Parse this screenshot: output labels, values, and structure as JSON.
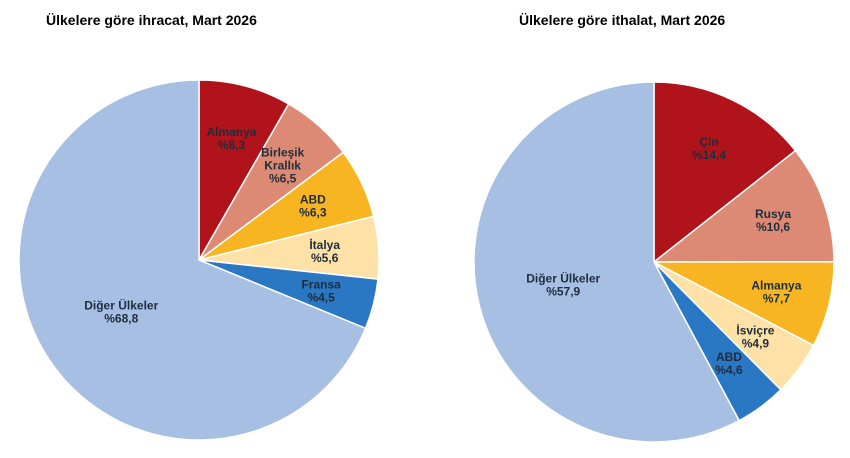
{
  "chart_data": [
    {
      "type": "pie",
      "title": "Ülkelere göre ihracat, Mart 2026",
      "slices": [
        {
          "label": [
            "Almanya"
          ],
          "value": 8.3,
          "value_text": "%8,3",
          "color": "#b0141a",
          "key": "almanya"
        },
        {
          "label": [
            "Birleşik",
            "Krallık"
          ],
          "value": 6.5,
          "value_text": "%6,5",
          "color": "#dc8a74",
          "key": "birlesik-krallik"
        },
        {
          "label": [
            "ABD"
          ],
          "value": 6.3,
          "value_text": "%6,3",
          "color": "#f7b521",
          "key": "abd"
        },
        {
          "label": [
            "İtalya"
          ],
          "value": 5.6,
          "value_text": "%5,6",
          "color": "#fde1a6",
          "key": "italya"
        },
        {
          "label": [
            "Fransa"
          ],
          "value": 4.5,
          "value_text": "%4,5",
          "color": "#2a78c4",
          "key": "fransa"
        },
        {
          "label": [
            "Diğer Ülkeler"
          ],
          "value": 68.8,
          "value_text": "%68,8",
          "color": "#a6bfe3",
          "key": "diger-ulkeler"
        }
      ]
    },
    {
      "type": "pie",
      "title": "Ülkelere göre ithalat, Mart 2026",
      "slices": [
        {
          "label": [
            "Çin"
          ],
          "value": 14.4,
          "value_text": "%14,4",
          "color": "#b0141a",
          "key": "cin"
        },
        {
          "label": [
            "Rusya"
          ],
          "value": 10.6,
          "value_text": "%10,6",
          "color": "#dc8a74",
          "key": "rusya"
        },
        {
          "label": [
            "Almanya"
          ],
          "value": 7.7,
          "value_text": "%7,7",
          "color": "#f7b521",
          "key": "almanya"
        },
        {
          "label": [
            "İsviçre"
          ],
          "value": 4.9,
          "value_text": "%4,9",
          "color": "#fde1a6",
          "key": "isvicre"
        },
        {
          "label": [
            "ABD"
          ],
          "value": 4.6,
          "value_text": "%4,6",
          "color": "#2a78c4",
          "key": "abd"
        },
        {
          "label": [
            "Diğer Ülkeler"
          ],
          "value": 57.9,
          "value_text": "%57,9",
          "color": "#a6bfe3",
          "key": "diger-ulkeler"
        }
      ]
    }
  ]
}
